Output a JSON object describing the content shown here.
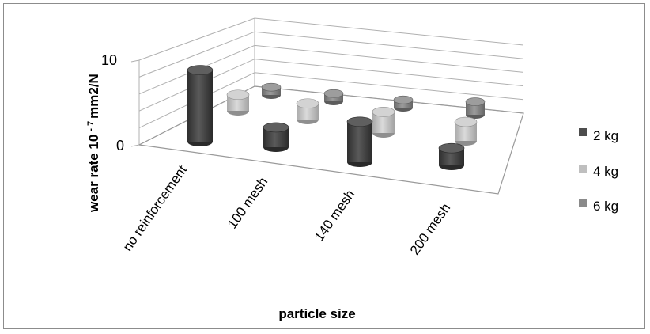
{
  "chart_data": {
    "type": "bar",
    "style": "3d-cylinder",
    "title": "",
    "xlabel": "particle size",
    "ylabel_parts": {
      "main": "wear rate 10",
      "exp": "- 7",
      "unit": "mm2/N"
    },
    "categories": [
      "no reinforcement",
      "100 mesh",
      "140 mesh",
      "200 mesh"
    ],
    "yticks": [
      "0",
      "10"
    ],
    "ylim": [
      0,
      10
    ],
    "grid": true,
    "legend_position": "right",
    "series": [
      {
        "name": "2 kg",
        "color": "#4d4d4d",
        "values": [
          8.3,
          2.3,
          4.7,
          2.0
        ]
      },
      {
        "name": "4 kg",
        "color": "#bfbfbf",
        "values": [
          2.2,
          2.2,
          2.9,
          2.6
        ]
      },
      {
        "name": "6 kg",
        "color": "#8a8a8a",
        "values": [
          1.2,
          1.2,
          1.2,
          2.0
        ]
      }
    ]
  }
}
